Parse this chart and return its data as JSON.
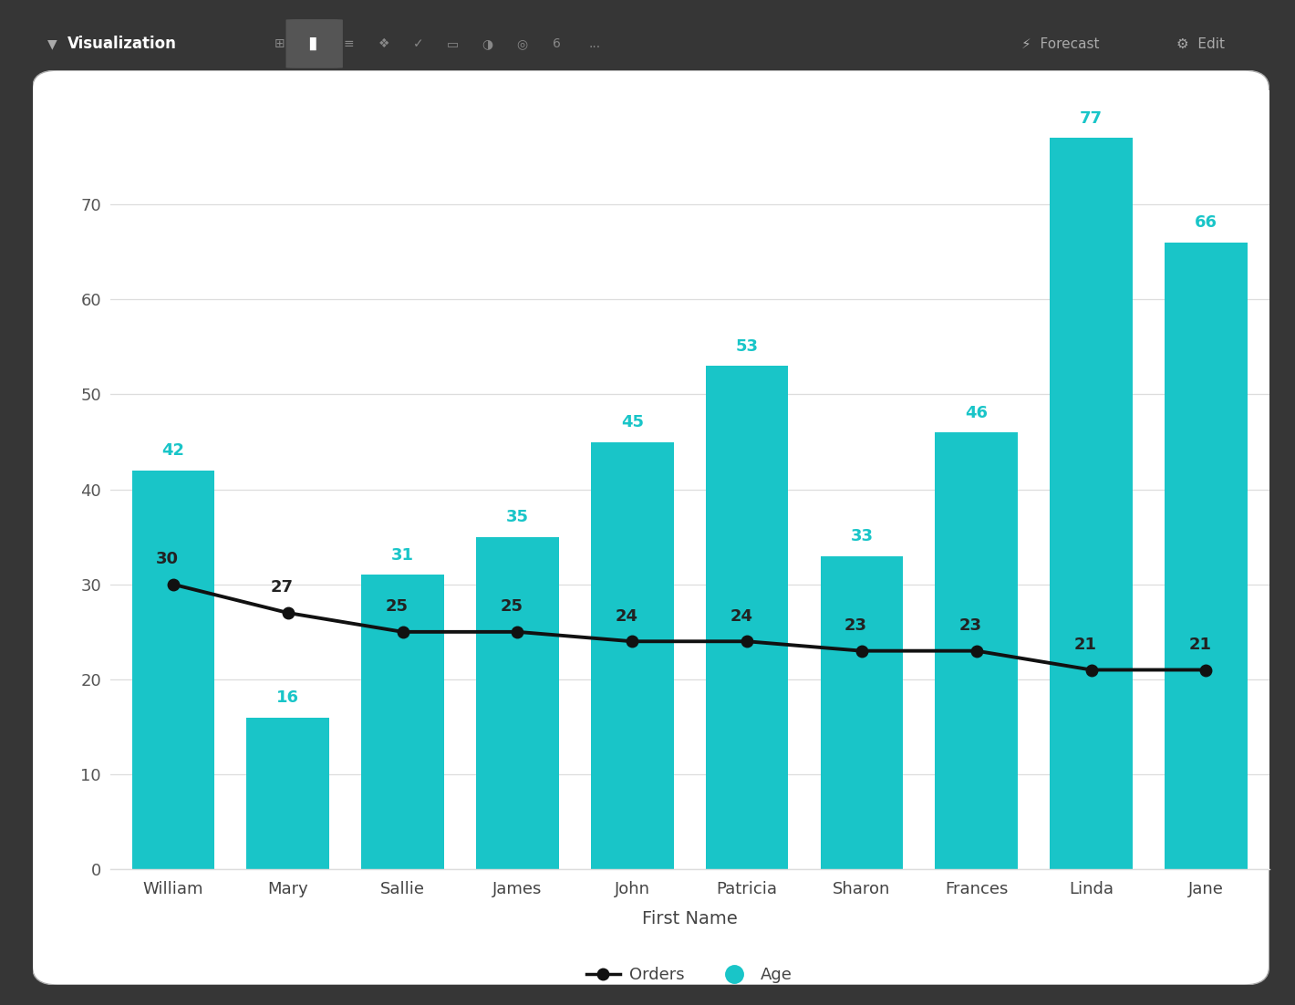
{
  "names": [
    "William",
    "Mary",
    "Sallie",
    "James",
    "John",
    "Patricia",
    "Sharon",
    "Frances",
    "Linda",
    "Jane"
  ],
  "age": [
    42,
    16,
    31,
    35,
    45,
    53,
    33,
    46,
    77,
    66
  ],
  "orders": [
    30,
    27,
    25,
    25,
    24,
    24,
    23,
    23,
    21,
    21
  ],
  "bar_color": "#19C5C8",
  "line_color": "#111111",
  "background_color": "#FFFFFF",
  "outer_background": "#363636",
  "xlabel": "First Name",
  "ylim": [
    0,
    82
  ],
  "yticks": [
    0,
    10,
    20,
    30,
    40,
    50,
    60,
    70
  ],
  "age_label_color": "#19C5C8",
  "orders_label_color": "#222222",
  "legend_orders_label": "Orders",
  "legend_age_label": "Age",
  "grid_color": "#DDDDDD",
  "toolbar_color": "#2B2B2B"
}
